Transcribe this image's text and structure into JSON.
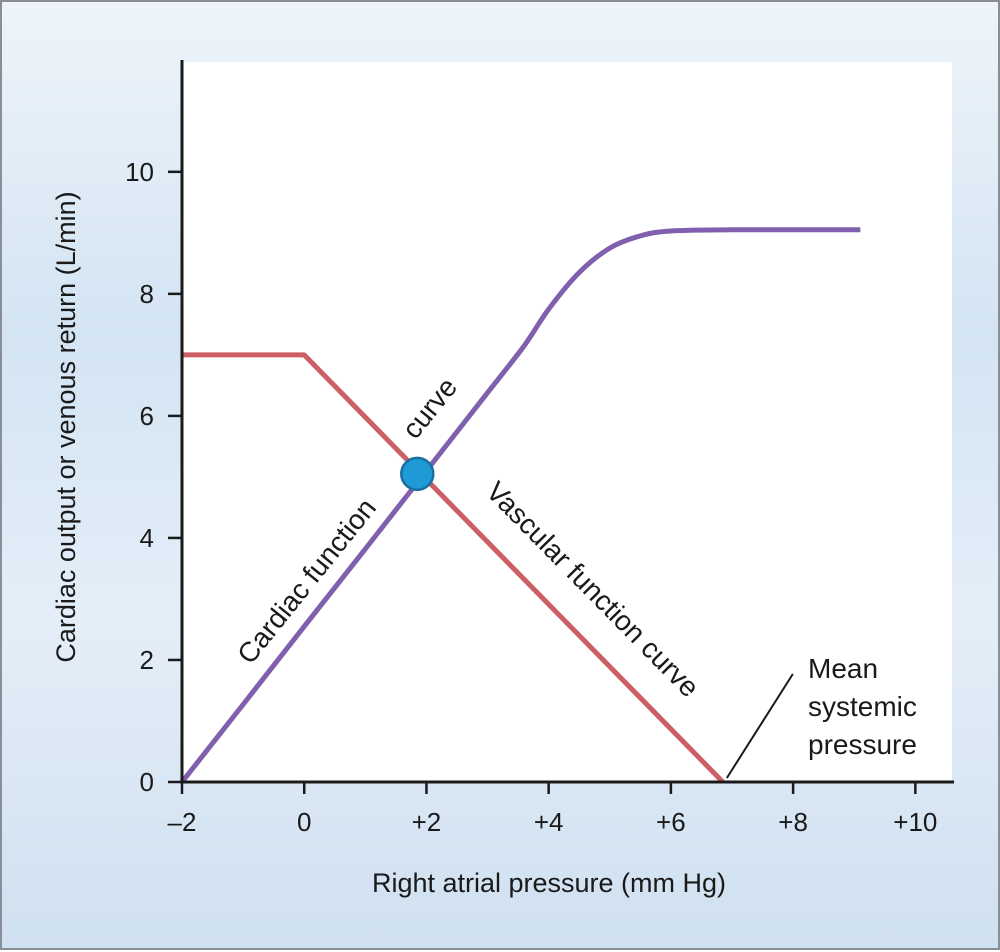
{
  "chart_data": {
    "type": "line",
    "title": "",
    "xlabel": "Right atrial pressure (mm Hg)",
    "ylabel": "Cardiac output or venous return (L/min)",
    "xlim": [
      -2,
      10.6
    ],
    "ylim": [
      0,
      11.8
    ],
    "x_ticks": [
      -2,
      0,
      2,
      4,
      6,
      8,
      10
    ],
    "x_tick_labels": [
      "–2",
      "0",
      "+2",
      "+4",
      "+6",
      "+8",
      "+10"
    ],
    "y_ticks": [
      0,
      2,
      4,
      6,
      8,
      10
    ],
    "y_tick_labels": [
      "0",
      "2",
      "4",
      "6",
      "8",
      "10"
    ],
    "grid": false,
    "series": [
      {
        "label_line1": "Cardiac function",
        "label_line2": "curve",
        "color": "#7f5fae",
        "x": [
          -2,
          -1,
          0,
          1,
          2,
          3,
          3.6,
          4,
          4.5,
          5,
          5.5,
          6,
          7,
          8,
          9.1
        ],
        "y": [
          0,
          1.27,
          2.55,
          3.82,
          5.1,
          6.38,
          7.15,
          7.75,
          8.35,
          8.75,
          8.95,
          9.03,
          9.05,
          9.05,
          9.05
        ]
      },
      {
        "label": "Vascular function curve",
        "color": "#cc5f63",
        "x": [
          -2,
          0,
          6.85
        ],
        "y": [
          7,
          7,
          0
        ]
      }
    ],
    "intersection": {
      "x": 1.85,
      "y": 5.05,
      "color": "#1f9ad6"
    },
    "annotation": {
      "lines": [
        "Mean",
        "systemic",
        "pressure"
      ],
      "x": 6.85,
      "y": 0
    }
  }
}
